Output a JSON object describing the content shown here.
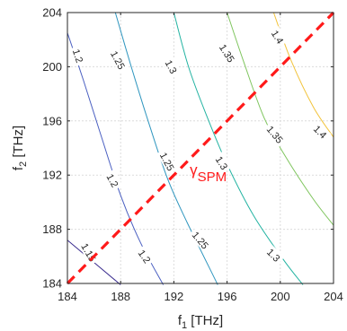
{
  "chart_data": {
    "type": "contour",
    "title": "",
    "xlabel": {
      "base": "f",
      "sub": "1",
      "rest": " [THz]"
    },
    "ylabel": {
      "base": "f",
      "sub": "2",
      "rest": " [THz]"
    },
    "xlim": [
      184,
      204
    ],
    "ylim": [
      184,
      204
    ],
    "xticks": [
      "184",
      "188",
      "192",
      "196",
      "200",
      "204"
    ],
    "yticks": [
      "184",
      "188",
      "192",
      "196",
      "200",
      "204"
    ],
    "grid": true,
    "levels": [
      {
        "value": 1.15,
        "label": "1.15",
        "color": "#3b2d8f",
        "points": [
          [
            184,
            187.2
          ],
          [
            188,
            183.9
          ]
        ]
      },
      {
        "value": 1.2,
        "label": "1.2",
        "color": "#4a5fc1",
        "points": [
          [
            184,
            202.5
          ],
          [
            185.2,
            199.0
          ],
          [
            186.5,
            195.0
          ],
          [
            188.0,
            190.5
          ],
          [
            189.5,
            187.0
          ],
          [
            191.2,
            183.9
          ]
        ]
      },
      {
        "value": 1.25,
        "label": "1.25",
        "color": "#2f96bf",
        "points": [
          [
            187.6,
            204
          ],
          [
            188.8,
            200.0
          ],
          [
            190.0,
            196.2
          ],
          [
            191.5,
            191.8
          ],
          [
            193.0,
            188.5
          ],
          [
            195.3,
            183.9
          ]
        ]
      },
      {
        "value": 1.3,
        "label": "1.3",
        "color": "#23b3a2",
        "points": [
          [
            192.0,
            204
          ],
          [
            193.1,
            200.0
          ],
          [
            194.5,
            196.3
          ],
          [
            196.0,
            192.8
          ],
          [
            198.0,
            189.0
          ],
          [
            200.2,
            185.8
          ],
          [
            201.7,
            183.9
          ]
        ]
      },
      {
        "value": 1.35,
        "label": "1.35",
        "color": "#7fc55e",
        "points": [
          [
            196.0,
            204
          ],
          [
            197.2,
            200.5
          ],
          [
            198.8,
            196.2
          ],
          [
            200.5,
            193.2
          ],
          [
            202.5,
            190.2
          ],
          [
            204,
            188.3
          ]
        ]
      },
      {
        "value": 1.4,
        "label": "1.4",
        "color": "#f2c33a",
        "points": [
          [
            199.5,
            204
          ],
          [
            200.8,
            200.5
          ],
          [
            202.5,
            197.0
          ],
          [
            204,
            194.8
          ]
        ]
      }
    ],
    "contour_labels": [
      {
        "text": "1.2",
        "x": 184.8,
        "y": 200.8,
        "rot": 72
      },
      {
        "text": "1.25",
        "x": 187.8,
        "y": 200.5,
        "rot": 62
      },
      {
        "text": "1.3",
        "x": 191.8,
        "y": 200.0,
        "rot": 62
      },
      {
        "text": "1.35",
        "x": 196.0,
        "y": 201.0,
        "rot": 58
      },
      {
        "text": "1.4",
        "x": 199.8,
        "y": 202.2,
        "rot": 58
      },
      {
        "text": "1.2",
        "x": 187.4,
        "y": 191.6,
        "rot": 62
      },
      {
        "text": "1.25",
        "x": 191.5,
        "y": 193.0,
        "rot": 62
      },
      {
        "text": "1.3",
        "x": 195.6,
        "y": 192.9,
        "rot": 58
      },
      {
        "text": "1.35",
        "x": 199.6,
        "y": 195.0,
        "rot": 50
      },
      {
        "text": "1.4",
        "x": 203.0,
        "y": 195.2,
        "rot": 45
      },
      {
        "text": "1.15",
        "x": 185.6,
        "y": 186.3,
        "rot": 60
      },
      {
        "text": "1.2",
        "x": 189.8,
        "y": 186.0,
        "rot": 55
      },
      {
        "text": "1.25",
        "x": 194.0,
        "y": 187.2,
        "rot": 50
      },
      {
        "text": "1.3",
        "x": 199.5,
        "y": 186.1,
        "rot": 45
      }
    ],
    "diagonal": {
      "label_base": "γ",
      "label_sub": "SPM",
      "color": "#ff1a1a",
      "from": [
        184,
        184
      ],
      "to": [
        204,
        204
      ],
      "label_at": [
        193.2,
        192.0
      ]
    }
  }
}
